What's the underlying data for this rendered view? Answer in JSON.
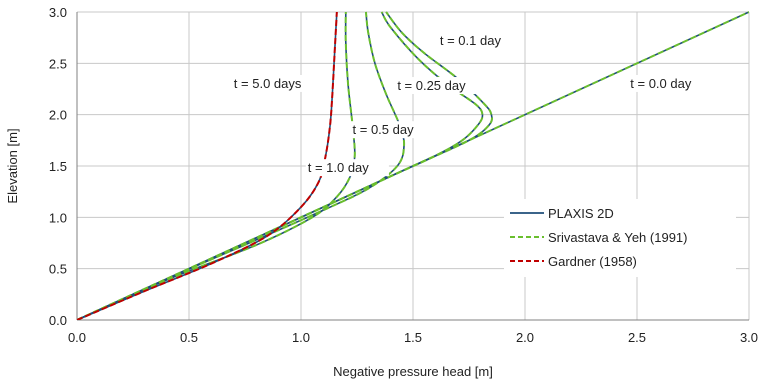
{
  "chart_data": {
    "type": "line",
    "xlabel": "Negative pressure head [m]",
    "ylabel": "Elevation [m]",
    "xlim": [
      0,
      3
    ],
    "ylim": [
      0,
      3
    ],
    "xticks": [
      "0.0",
      "0.5",
      "1.0",
      "1.5",
      "2.0",
      "2.5",
      "3.0"
    ],
    "yticks": [
      "0.0",
      "0.5",
      "1.0",
      "1.5",
      "2.0",
      "2.5",
      "3.0"
    ],
    "grid": true,
    "legend_position": "bottom-right",
    "legend": [
      {
        "label": "PLAXIS 2D",
        "color": "#1f4e79",
        "style": "solid"
      },
      {
        "label": "Srivastava & Yeh (1991)",
        "color": "#6abf2e",
        "style": "dashed"
      },
      {
        "label": "Gardner (1958)",
        "color": "#c00000",
        "style": "dashed"
      }
    ],
    "annotations": [
      {
        "text": "t = 0.1 day",
        "x": 1.62,
        "y": 2.68
      },
      {
        "text": "t = 5.0 days",
        "x": 0.7,
        "y": 2.26
      },
      {
        "text": "t = 0.25 day",
        "x": 1.43,
        "y": 2.24
      },
      {
        "text": "t = 0.0 day",
        "x": 2.47,
        "y": 2.26
      },
      {
        "text": "t = 0.5 day",
        "x": 1.23,
        "y": 1.81
      },
      {
        "text": "t = 1.0 day",
        "x": 1.03,
        "y": 1.44
      }
    ],
    "series": [
      {
        "x": [
          0,
          3.0
        ],
        "y": [
          0,
          3.0
        ]
      },
      {
        "x": [
          0,
          1.0,
          1.5,
          1.75,
          1.84,
          1.85,
          1.82,
          1.7,
          1.55,
          1.45,
          1.38
        ],
        "y": [
          0,
          1.0,
          1.5,
          1.75,
          1.9,
          2.0,
          2.1,
          2.35,
          2.6,
          2.8,
          3.0
        ]
      },
      {
        "x": [
          0,
          1.0,
          1.4,
          1.6,
          1.72,
          1.79,
          1.81,
          1.78,
          1.65,
          1.52,
          1.4,
          1.36
        ],
        "y": [
          0,
          1.0,
          1.4,
          1.6,
          1.75,
          1.9,
          2.0,
          2.1,
          2.3,
          2.55,
          2.85,
          3.0
        ]
      },
      {
        "x": [
          0,
          0.4,
          0.8,
          1.1,
          1.3,
          1.43,
          1.46,
          1.44,
          1.38,
          1.33,
          1.3,
          1.29
        ],
        "y": [
          0,
          0.4,
          0.78,
          1.07,
          1.28,
          1.5,
          1.7,
          1.9,
          2.2,
          2.5,
          2.8,
          3.0
        ]
      },
      {
        "x": [
          0,
          0.4,
          0.8,
          1.05,
          1.16,
          1.22,
          1.24,
          1.23,
          1.21,
          1.2,
          1.2
        ],
        "y": [
          0,
          0.39,
          0.73,
          1.0,
          1.2,
          1.4,
          1.6,
          1.9,
          2.3,
          2.7,
          3.0
        ]
      },
      {
        "x": [
          0,
          0.3,
          0.6,
          0.85,
          1.0,
          1.08,
          1.11,
          1.13,
          1.14,
          1.15,
          1.16
        ],
        "y": [
          0,
          0.28,
          0.55,
          0.82,
          1.1,
          1.35,
          1.6,
          1.9,
          2.2,
          2.6,
          3.0
        ]
      }
    ]
  }
}
